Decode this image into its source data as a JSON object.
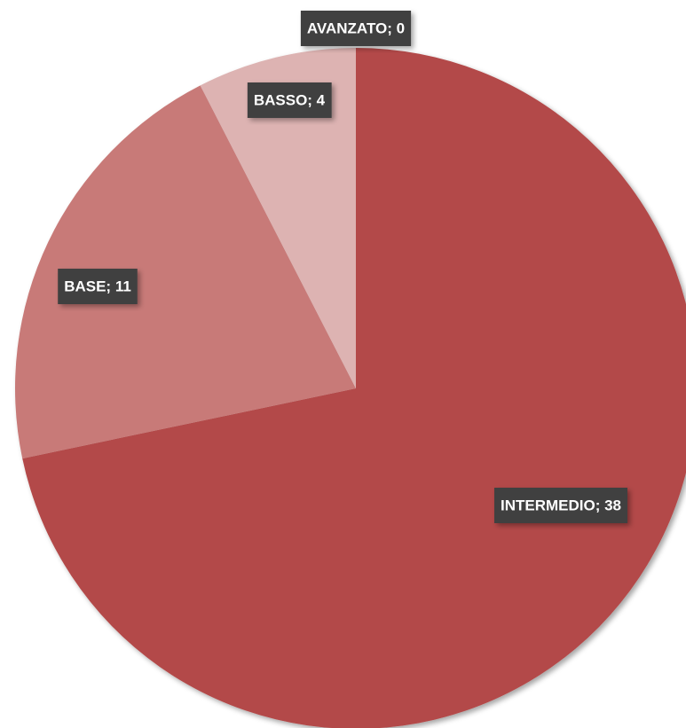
{
  "chart_data": {
    "type": "pie",
    "categories": [
      "INTERMEDIO",
      "BASE",
      "BASSO",
      "AVANZATO"
    ],
    "values": [
      38,
      11,
      4,
      0
    ],
    "value_labels": [
      "INTERMEDIO; 38",
      "BASE; 11",
      "BASSO; 4",
      "AVANZATO; 0"
    ],
    "colors": [
      "#b34a48",
      "#c87a78",
      "#ddb3b2",
      "#eed5d4"
    ]
  }
}
